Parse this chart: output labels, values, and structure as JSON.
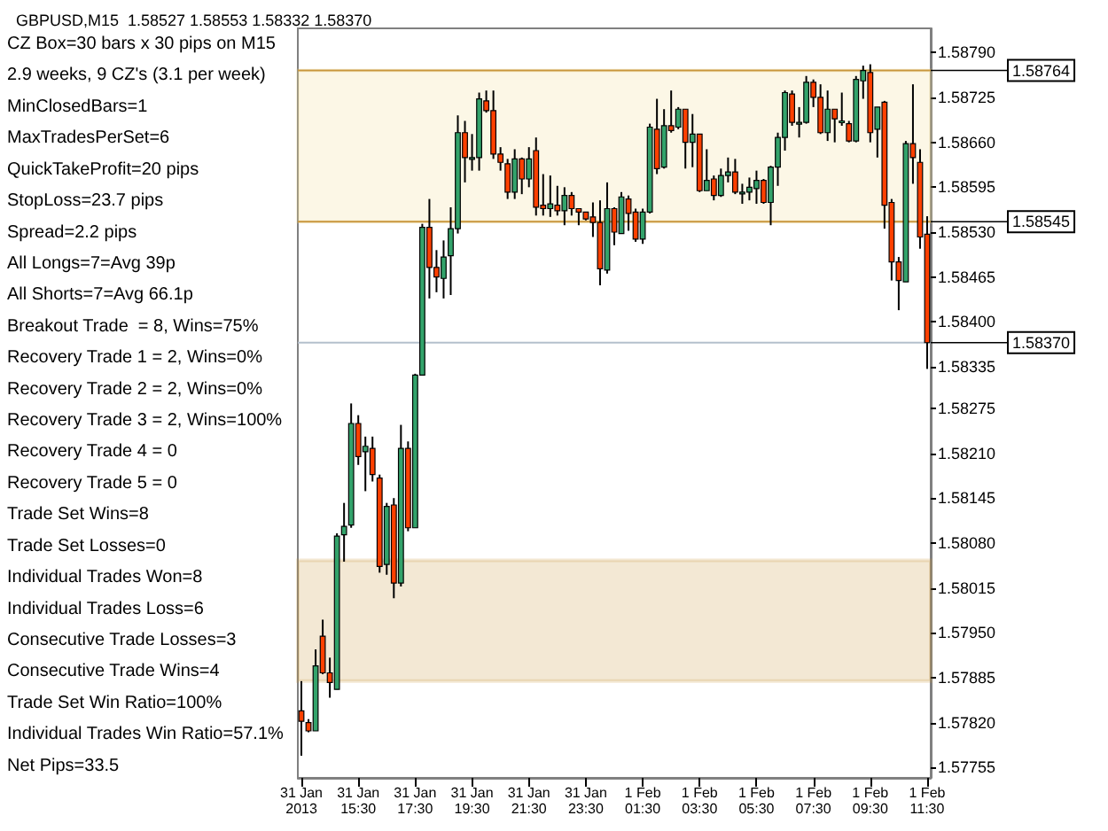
{
  "chart_data": {
    "type": "candlestick",
    "title": "GBPUSD,M15  1.58527 1.58553 1.58332 1.58370",
    "categories": [
      "31 Jan 2013",
      null,
      null,
      null,
      null,
      null,
      null,
      null,
      "31 Jan 15:30",
      null,
      null,
      null,
      null,
      null,
      null,
      null,
      "31 Jan 17:30",
      null,
      null,
      null,
      null,
      null,
      null,
      null,
      "31 Jan 19:30",
      null,
      null,
      null,
      null,
      null,
      null,
      null,
      "31 Jan 21:30",
      null,
      null,
      null,
      null,
      null,
      null,
      null,
      "31 Jan 23:30",
      null,
      null,
      null,
      null,
      null,
      null,
      null,
      "1 Feb 01:30",
      null,
      null,
      null,
      null,
      null,
      null,
      null,
      "1 Feb 03:30",
      null,
      null,
      null,
      null,
      null,
      null,
      null,
      "1 Feb 05:30",
      null,
      null,
      null,
      null,
      null,
      null,
      null,
      "1 Feb 07:30",
      null,
      null,
      null,
      null,
      null,
      null,
      null,
      "1 Feb 09:30",
      null,
      null,
      null,
      null,
      null,
      null,
      null,
      "1 Feb 11:30"
    ],
    "ohlc": [
      [
        1.57837,
        1.5788,
        1.57772,
        1.57822
      ],
      [
        1.5782,
        1.57825,
        1.57806,
        1.57808
      ],
      [
        1.57808,
        1.57926,
        1.57808,
        1.57902
      ],
      [
        1.57945,
        1.57969,
        1.5789,
        1.57892
      ],
      [
        1.57892,
        1.57914,
        1.57856,
        1.57878
      ],
      [
        1.57868,
        1.58094,
        1.57868,
        1.5809
      ],
      [
        1.58092,
        1.58138,
        1.58053,
        1.58104
      ],
      [
        1.58106,
        1.58282,
        1.58102,
        1.58253
      ],
      [
        1.58253,
        1.58265,
        1.58193,
        1.58205
      ],
      [
        1.58212,
        1.58234,
        1.58155,
        1.5822
      ],
      [
        1.58217,
        1.58234,
        1.58169,
        1.58179
      ],
      [
        1.58174,
        1.58179,
        1.58037,
        1.58046
      ],
      [
        1.58049,
        1.58138,
        1.58034,
        1.58133
      ],
      [
        1.58135,
        1.58145,
        1.58,
        1.58022
      ],
      [
        1.58022,
        1.58251,
        1.58017,
        1.58217
      ],
      [
        1.58217,
        1.58227,
        1.58097,
        1.58102
      ],
      [
        1.58102,
        1.58325,
        1.58102,
        1.58323
      ],
      [
        1.58323,
        1.58542,
        1.58323,
        1.58537
      ],
      [
        1.58537,
        1.58578,
        1.58434,
        1.58479
      ],
      [
        1.58479,
        1.58504,
        1.58443,
        1.58465
      ],
      [
        1.58463,
        1.58518,
        1.58434,
        1.58494
      ],
      [
        1.58496,
        1.58566,
        1.58439,
        1.58535
      ],
      [
        1.58535,
        1.58699,
        1.58528,
        1.58674
      ],
      [
        1.58674,
        1.58691,
        1.58602,
        1.58638
      ],
      [
        1.58638,
        1.58672,
        1.58619,
        1.58638
      ],
      [
        1.58638,
        1.58732,
        1.58619,
        1.58723
      ],
      [
        1.5872,
        1.58735,
        1.58703,
        1.58706
      ],
      [
        1.58706,
        1.58735,
        1.58636,
        1.58643
      ],
      [
        1.58643,
        1.58653,
        1.58619,
        1.58631
      ],
      [
        1.58629,
        1.58636,
        1.58578,
        1.58588
      ],
      [
        1.58588,
        1.5865,
        1.58578,
        1.58636
      ],
      [
        1.58636,
        1.58638,
        1.58585,
        1.58607
      ],
      [
        1.58607,
        1.58653,
        1.58595,
        1.58636
      ],
      [
        1.58648,
        1.58667,
        1.58554,
        1.58566
      ],
      [
        1.58569,
        1.58614,
        1.58554,
        1.58564
      ],
      [
        1.58564,
        1.58612,
        1.58552,
        1.58571
      ],
      [
        1.58569,
        1.58597,
        1.58554,
        1.58561
      ],
      [
        1.58561,
        1.58595,
        1.5854,
        1.58583
      ],
      [
        1.58583,
        1.58588,
        1.58554,
        1.58564
      ],
      [
        1.58564,
        1.58564,
        1.5854,
        1.58559
      ],
      [
        1.58559,
        1.58559,
        1.58547,
        1.58549
      ],
      [
        1.58552,
        1.58573,
        1.58523,
        1.58544
      ],
      [
        1.58544,
        1.58576,
        1.58453,
        1.58477
      ],
      [
        1.58475,
        1.58602,
        1.5847,
        1.58564
      ],
      [
        1.58564,
        1.58566,
        1.58511,
        1.5853
      ],
      [
        1.58528,
        1.58588,
        1.58528,
        1.58581
      ],
      [
        1.58578,
        1.58583,
        1.58532,
        1.58557
      ],
      [
        1.58559,
        1.58564,
        1.58516,
        1.5852
      ],
      [
        1.5852,
        1.58564,
        1.58513,
        1.58559
      ],
      [
        1.58559,
        1.58687,
        1.58557,
        1.58682
      ],
      [
        1.58679,
        1.58723,
        1.58614,
        1.58622
      ],
      [
        1.58624,
        1.58708,
        1.58622,
        1.58684
      ],
      [
        1.58684,
        1.58735,
        1.58674,
        1.58677
      ],
      [
        1.58682,
        1.58711,
        1.58679,
        1.58708
      ],
      [
        1.58708,
        1.58708,
        1.58622,
        1.5866
      ],
      [
        1.5866,
        1.58701,
        1.58624,
        1.58672
      ],
      [
        1.58672,
        1.58672,
        1.58588,
        1.5859
      ],
      [
        1.5859,
        1.5865,
        1.5859,
        1.58605
      ],
      [
        1.58607,
        1.58612,
        1.58576,
        1.58583
      ],
      [
        1.58583,
        1.58622,
        1.58581,
        1.58612
      ],
      [
        1.58612,
        1.58638,
        1.58602,
        1.58617
      ],
      [
        1.58617,
        1.58636,
        1.58585,
        1.58588
      ],
      [
        1.58588,
        1.586,
        1.58571,
        1.58588
      ],
      [
        1.58588,
        1.58609,
        1.58576,
        1.58595
      ],
      [
        1.58593,
        1.58619,
        1.58571,
        1.58605
      ],
      [
        1.58605,
        1.58607,
        1.58571,
        1.58573
      ],
      [
        1.58573,
        1.58626,
        1.5854,
        1.58624
      ],
      [
        1.58624,
        1.58674,
        1.58597,
        1.58667
      ],
      [
        1.58667,
        1.58735,
        1.58648,
        1.58732
      ],
      [
        1.5873,
        1.58735,
        1.58684,
        1.58689
      ],
      [
        1.58689,
        1.58711,
        1.58667,
        1.58689
      ],
      [
        1.58689,
        1.58756,
        1.58687,
        1.58747
      ],
      [
        1.58747,
        1.58751,
        1.58711,
        1.58725
      ],
      [
        1.58725,
        1.58744,
        1.58672,
        1.58674
      ],
      [
        1.58674,
        1.58735,
        1.58662,
        1.58708
      ],
      [
        1.58708,
        1.58708,
        1.5866,
        1.58694
      ],
      [
        1.58691,
        1.58732,
        1.58684,
        1.58691
      ],
      [
        1.58687,
        1.58691,
        1.5866,
        1.58662
      ],
      [
        1.58662,
        1.58756,
        1.5866,
        1.58751
      ],
      [
        1.58749,
        1.58771,
        1.58723,
        1.58764
      ],
      [
        1.58761,
        1.58773,
        1.5866,
        1.58674
      ],
      [
        1.58679,
        1.58711,
        1.58638,
        1.58711
      ],
      [
        1.58718,
        1.5872,
        1.58535,
        1.58569
      ],
      [
        1.58573,
        1.58578,
        1.5846,
        1.58487
      ],
      [
        1.58487,
        1.58494,
        1.58417,
        1.5846
      ],
      [
        1.58458,
        1.58662,
        1.58458,
        1.58658
      ],
      [
        1.58658,
        1.58744,
        1.586,
        1.58638
      ],
      [
        1.58631,
        1.5865,
        1.58506,
        1.58523
      ],
      [
        1.58527,
        1.58553,
        1.58332,
        1.5837
      ]
    ],
    "ylim": [
      1.5774,
      1.58825
    ],
    "yticks": [
      {
        "value": 1.5879,
        "label": "1.58790"
      },
      {
        "value": 1.58725,
        "label": "1.58725"
      },
      {
        "value": 1.5866,
        "label": "1.58660"
      },
      {
        "value": 1.58595,
        "label": "1.58595"
      },
      {
        "value": 1.5853,
        "label": "1.58530"
      },
      {
        "value": 1.58465,
        "label": "1.58465"
      },
      {
        "value": 1.584,
        "label": "1.58400"
      },
      {
        "value": 1.58335,
        "label": "1.58335"
      },
      {
        "value": 1.58275,
        "label": "1.58275"
      },
      {
        "value": 1.5821,
        "label": "1.58210"
      },
      {
        "value": 1.58145,
        "label": "1.58145"
      },
      {
        "value": 1.5808,
        "label": "1.58080"
      },
      {
        "value": 1.58015,
        "label": "1.58015"
      },
      {
        "value": 1.5795,
        "label": "1.57950"
      },
      {
        "value": 1.57885,
        "label": "1.57885"
      },
      {
        "value": 1.5782,
        "label": "1.57820"
      },
      {
        "value": 1.57755,
        "label": "1.57755"
      }
    ],
    "ref_lines": [
      {
        "axis": "y",
        "value": 1.58764,
        "label": "1.58764",
        "color": "#c8963c"
      },
      {
        "axis": "y",
        "value": 1.58545,
        "label": "1.58545",
        "color": "#c8963c"
      },
      {
        "axis": "y",
        "value": 1.5837,
        "label": "1.58370",
        "color": "#b4c0cc"
      }
    ],
    "bands": [
      {
        "axis": "y",
        "from": 1.58545,
        "to": 1.58764,
        "color": "#f0dc8c"
      },
      {
        "axis": "y",
        "from": 1.5788,
        "to": 1.58055,
        "color": "#c8963c"
      }
    ],
    "annotations": [
      "CZ Box=30 bars x 30 pips on M15",
      "2.9 weeks, 9 CZ's (3.1 per week)",
      "MinClosedBars=1",
      "MaxTradesPerSet=6",
      "QuickTakeProfit=20 pips",
      "StopLoss=23.7 pips",
      "Spread=2.2 pips",
      "All Longs=7=Avg 39p",
      "All Shorts=7=Avg 66.1p",
      "Breakout Trade  = 8, Wins=75%",
      "Recovery Trade 1 = 2, Wins=0%",
      "Recovery Trade 2 = 2, Wins=0%",
      "Recovery Trade 3 = 2, Wins=100%",
      "Recovery Trade 4 = 0",
      "Recovery Trade 5 = 0",
      "Trade Set Wins=8",
      "Trade Set Losses=0",
      "Individual Trades Won=8",
      "Individual Trades Loss=6",
      "Consecutive Trade Losses=3",
      "Consecutive Trade Wins=4",
      "Trade Set Win Ratio=100%",
      "Individual Trades Win Ratio=57.1%",
      "Net Pips=33.5"
    ],
    "grid": false
  }
}
